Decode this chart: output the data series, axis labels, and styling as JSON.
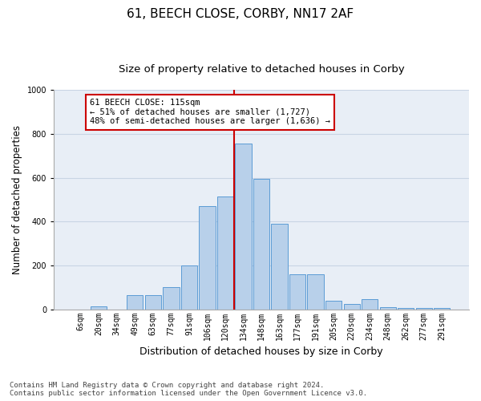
{
  "title": "61, BEECH CLOSE, CORBY, NN17 2AF",
  "subtitle": "Size of property relative to detached houses in Corby",
  "xlabel": "Distribution of detached houses by size in Corby",
  "ylabel": "Number of detached properties",
  "categories": [
    "6sqm",
    "20sqm",
    "34sqm",
    "49sqm",
    "63sqm",
    "77sqm",
    "91sqm",
    "106sqm",
    "120sqm",
    "134sqm",
    "148sqm",
    "163sqm",
    "177sqm",
    "191sqm",
    "205sqm",
    "220sqm",
    "234sqm",
    "248sqm",
    "262sqm",
    "277sqm",
    "291sqm"
  ],
  "values": [
    0,
    12,
    0,
    65,
    65,
    100,
    200,
    470,
    515,
    755,
    595,
    390,
    160,
    160,
    40,
    25,
    45,
    10,
    5,
    5,
    5
  ],
  "bar_color": "#b8d0ea",
  "bar_edge_color": "#5b9bd5",
  "background_color": "#ffffff",
  "plot_bg_color": "#e8eef6",
  "grid_color": "#c8d4e4",
  "annotation_text_line1": "61 BEECH CLOSE: 115sqm",
  "annotation_text_line2": "← 51% of detached houses are smaller (1,727)",
  "annotation_text_line3": "48% of semi-detached houses are larger (1,636) →",
  "red_line_color": "#cc0000",
  "annotation_box_edge_color": "#cc0000",
  "footer_line1": "Contains HM Land Registry data © Crown copyright and database right 2024.",
  "footer_line2": "Contains public sector information licensed under the Open Government Licence v3.0.",
  "ylim": [
    0,
    1000
  ],
  "title_fontsize": 11,
  "subtitle_fontsize": 9.5,
  "xlabel_fontsize": 9,
  "ylabel_fontsize": 8.5,
  "tick_fontsize": 7,
  "footer_fontsize": 6.5,
  "annotation_fontsize": 7.5
}
